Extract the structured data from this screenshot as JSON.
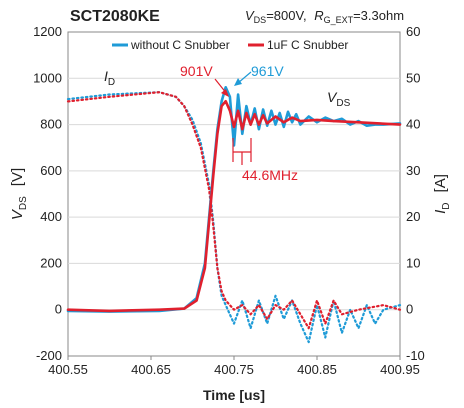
{
  "chart_data": {
    "type": "line",
    "title": "SCT2080KE",
    "conditions": {
      "vds_sym": "V",
      "vds_sub": "DS",
      "vds_val": "=800V,",
      "rg_sym": "R",
      "rg_sub": "G_EXT",
      "rg_val": "=3.3ohm"
    },
    "xlabel": "Time [us]",
    "ylabel_left": {
      "sym": "V",
      "sub": "DS",
      "unit": "[V]"
    },
    "ylabel_right": {
      "sym": "I",
      "sub": "D",
      "unit": "[A]"
    },
    "xlim": [
      400.55,
      400.95
    ],
    "ylim_left": [
      -200,
      1200
    ],
    "ylim_right": [
      -10,
      60
    ],
    "x_ticks": [
      "400.55",
      "400.65",
      "400.75",
      "400.85",
      "400.95"
    ],
    "y_left_ticks": [
      "-200",
      "0",
      "200",
      "400",
      "600",
      "800",
      "1000",
      "1200"
    ],
    "y_right_ticks": [
      "-10",
      "0",
      "10",
      "20",
      "30",
      "40",
      "50",
      "60"
    ],
    "legend_position": "top",
    "series": [
      {
        "name": "without C Snubber",
        "color": "#1f9bd7",
        "quantity": "VDS",
        "x": [
          400.55,
          400.6,
          400.66,
          400.69,
          400.705,
          400.715,
          400.72,
          400.725,
          400.73,
          400.735,
          400.74,
          400.745,
          400.75,
          400.755,
          400.76,
          400.765,
          400.77,
          400.775,
          400.78,
          400.785,
          400.79,
          400.795,
          400.8,
          400.805,
          400.81,
          400.815,
          400.82,
          400.825,
          400.83,
          400.84,
          400.85,
          400.86,
          400.87,
          400.88,
          400.89,
          400.9,
          400.91,
          400.92,
          400.93,
          400.95
        ],
        "y": [
          -5,
          -8,
          -5,
          5,
          50,
          200,
          400,
          600,
          780,
          900,
          961,
          920,
          710,
          930,
          760,
          880,
          800,
          870,
          780,
          865,
          795,
          860,
          800,
          850,
          790,
          855,
          810,
          845,
          800,
          835,
          810,
          830,
          815,
          825,
          800,
          815,
          795,
          800,
          800,
          805
        ]
      },
      {
        "name": "1uF C Snubber",
        "color": "#e0202e",
        "quantity": "VDS",
        "x": [
          400.55,
          400.6,
          400.66,
          400.69,
          400.705,
          400.715,
          400.72,
          400.725,
          400.73,
          400.735,
          400.74,
          400.745,
          400.75,
          400.755,
          400.76,
          400.765,
          400.77,
          400.775,
          400.78,
          400.785,
          400.79,
          400.8,
          400.81,
          400.82,
          400.83,
          400.85,
          400.87,
          400.9,
          400.95
        ],
        "y": [
          0,
          -5,
          0,
          5,
          40,
          180,
          380,
          580,
          760,
          880,
          901,
          860,
          790,
          860,
          780,
          850,
          800,
          845,
          800,
          840,
          805,
          835,
          810,
          830,
          815,
          820,
          815,
          810,
          800
        ]
      },
      {
        "name": "without C Snubber",
        "color": "#1f9bd7",
        "quantity": "ID",
        "style": "dotted",
        "x": [
          400.55,
          400.6,
          400.66,
          400.68,
          400.69,
          400.7,
          400.71,
          400.72,
          400.725,
          400.73,
          400.735,
          400.74,
          400.75,
          400.76,
          400.77,
          400.78,
          400.79,
          400.8,
          400.81,
          400.82,
          400.83,
          400.84,
          400.85,
          400.86,
          400.87,
          400.88,
          400.89,
          400.9,
          400.91,
          400.92,
          400.93,
          400.95
        ],
        "y": [
          45.5,
          46.5,
          47,
          46,
          44,
          41,
          36,
          27,
          19,
          9,
          3,
          1,
          -3,
          2,
          -4,
          2,
          -3,
          3,
          -2,
          2,
          -3,
          -7,
          1,
          -6,
          2,
          -5,
          0,
          -4,
          1,
          -3,
          0,
          1
        ]
      },
      {
        "name": "1uF C Snubber",
        "color": "#e0202e",
        "quantity": "ID",
        "style": "dotted",
        "x": [
          400.55,
          400.6,
          400.66,
          400.68,
          400.69,
          400.7,
          400.71,
          400.72,
          400.725,
          400.73,
          400.735,
          400.74,
          400.75,
          400.76,
          400.77,
          400.78,
          400.79,
          400.8,
          400.81,
          400.82,
          400.83,
          400.84,
          400.85,
          400.86,
          400.87,
          400.88,
          400.9,
          400.93,
          400.95
        ],
        "y": [
          45,
          46,
          47,
          46,
          44,
          40,
          35,
          26,
          18,
          9,
          4,
          2,
          0,
          1,
          -1,
          1,
          -2,
          1,
          0,
          2,
          -1,
          -4,
          2,
          -3,
          2,
          -1,
          0,
          1,
          0
        ]
      }
    ],
    "annotations": [
      {
        "text": "I",
        "sub": "D",
        "color": "#222222"
      },
      {
        "text": "V",
        "sub": "DS",
        "color": "#222222"
      },
      {
        "text": "901V",
        "color": "#e0202e"
      },
      {
        "text": "961V",
        "color": "#1f9bd7"
      },
      {
        "text": "44.6MHz",
        "color": "#e0202e"
      }
    ]
  }
}
